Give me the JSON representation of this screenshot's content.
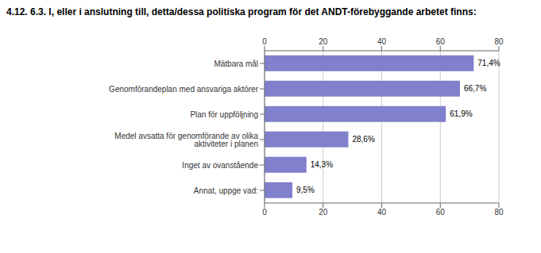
{
  "chart_data": {
    "type": "bar",
    "orientation": "horizontal",
    "title": "4.12. 6.3. I, eller i anslutning till, detta/dessa politiska program för det ANDT-förebyggande arbetet finns:",
    "categories": [
      "Annat, uppge vad:",
      "Inget av ovanstående",
      "Medel avsatta för genomförande av olika aktiviteter i planen",
      "Plan för uppföljning",
      "Genomförandeplan med ansvariga aktörer",
      "Mätbara mål"
    ],
    "values": [
      9.5,
      14.3,
      28.6,
      61.9,
      66.7,
      71.4
    ],
    "value_labels": [
      "9,5%",
      "14,3%",
      "28,6%",
      "61,9%",
      "66,7%",
      "71,4%"
    ],
    "color": "#8080cc",
    "xlim": [
      0,
      80
    ],
    "xticks": [
      0,
      20,
      40,
      60,
      80
    ],
    "grid": true,
    "data_labels": true
  }
}
